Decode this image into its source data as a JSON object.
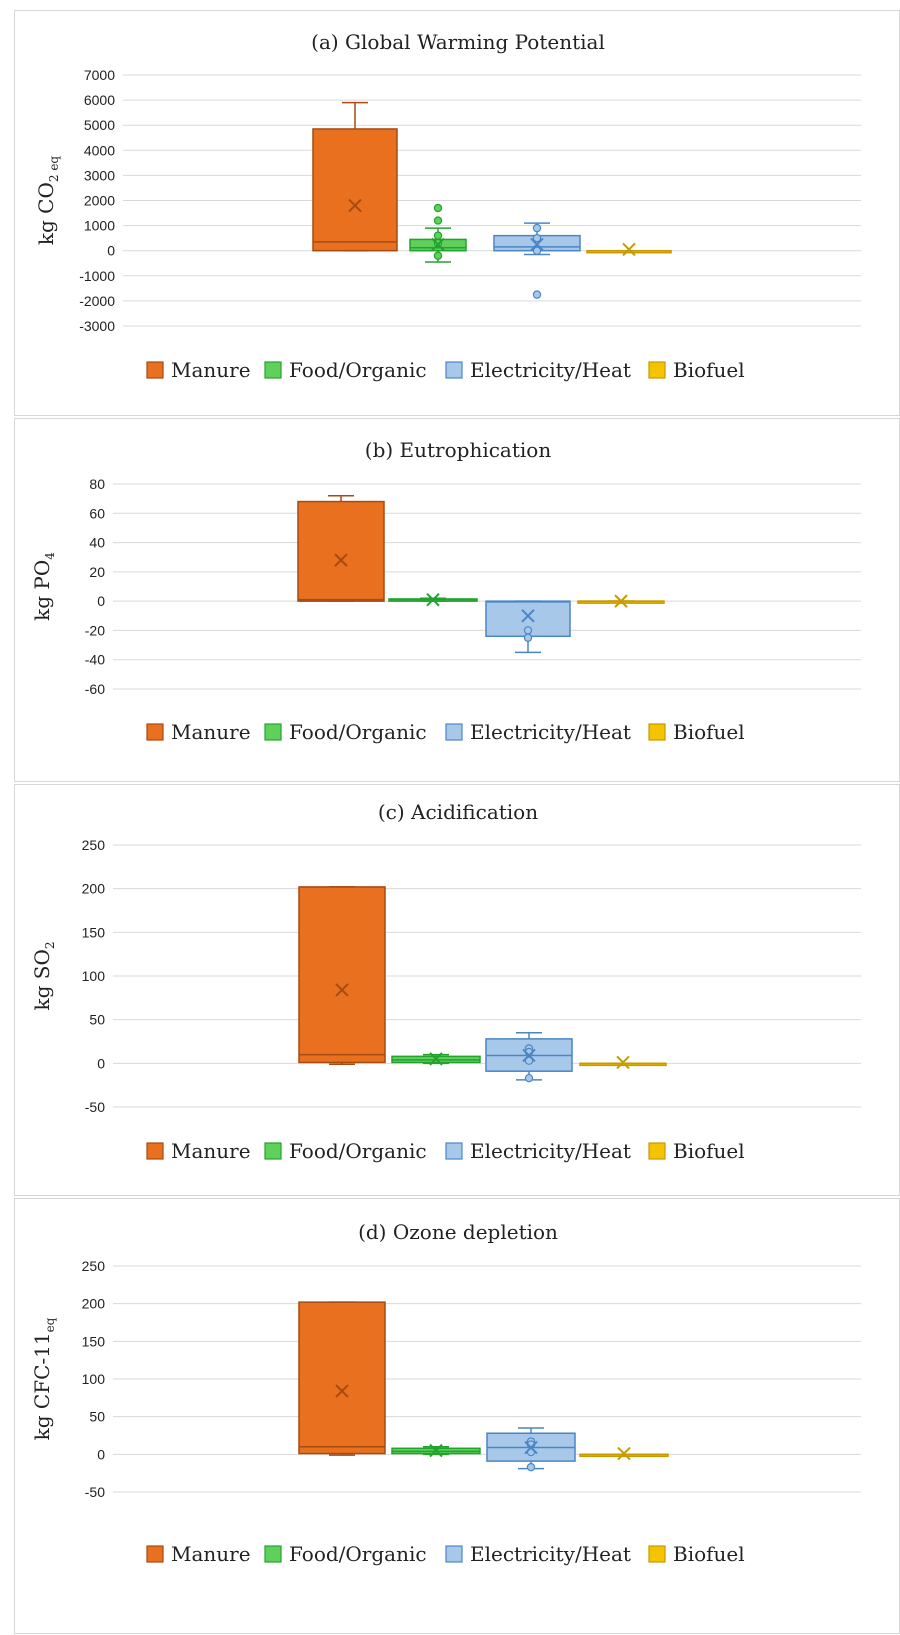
{
  "series_colors": {
    "Manure": {
      "fill": "#e8701f",
      "stroke": "#a64b12"
    },
    "Food/Organic": {
      "fill": "#5fd15a",
      "stroke": "#22a32e"
    },
    "Electricity/Heat": {
      "fill": "#a8c8ea",
      "stroke": "#4a86c6"
    },
    "Biofuel": {
      "fill": "#f5c400",
      "stroke": "#c79a00"
    }
  },
  "chart_data": [
    {
      "type": "box",
      "title": "(a) Global Warming Potential",
      "ylabel_main": "kg CO",
      "ylabel_sub": "2 eq",
      "ylim": [
        -3000,
        7000
      ],
      "yticks": [
        7000,
        6000,
        5000,
        4000,
        3000,
        2000,
        1000,
        0,
        -1000,
        -2000,
        -3000
      ],
      "legend": [
        "Manure",
        "Food/Organic",
        "Electricity/Heat",
        "Biofuel"
      ],
      "series": [
        {
          "name": "Manure",
          "q1": 0,
          "median": 350,
          "q3": 4850,
          "whisker_low": 0,
          "whisker_high": 5900,
          "mean": 1800,
          "outliers": []
        },
        {
          "name": "Food/Organic",
          "q1": 0,
          "median": 120,
          "q3": 450,
          "whisker_low": -450,
          "whisker_high": 900,
          "mean": 250,
          "outliers": [
            1700,
            1200,
            600,
            300,
            -200
          ]
        },
        {
          "name": "Electricity/Heat",
          "q1": 0,
          "median": 150,
          "q3": 600,
          "whisker_low": -150,
          "whisker_high": 1100,
          "mean": 250,
          "outliers": [
            900,
            500,
            0,
            -1750
          ]
        },
        {
          "name": "Biofuel",
          "q1": 0,
          "median": 0,
          "q3": 0,
          "whisker_low": 0,
          "whisker_high": 0,
          "mean": 50,
          "outliers": []
        }
      ]
    },
    {
      "type": "box",
      "title": "(b) Eutrophication",
      "ylabel_main": "kg PO",
      "ylabel_sub": "4",
      "ylim": [
        -60,
        80
      ],
      "yticks": [
        80,
        60,
        40,
        20,
        0,
        -20,
        -40,
        -60
      ],
      "legend": [
        "Manure",
        "Food/Organic",
        "Electricity/Heat",
        "Biofuel"
      ],
      "series": [
        {
          "name": "Manure",
          "q1": 0,
          "median": 1,
          "q3": 68,
          "whisker_low": 0,
          "whisker_high": 72,
          "mean": 28,
          "outliers": []
        },
        {
          "name": "Food/Organic",
          "q1": 0,
          "median": 1,
          "q3": 1.5,
          "whisker_low": 0,
          "whisker_high": 2,
          "mean": 1,
          "outliers": []
        },
        {
          "name": "Electricity/Heat",
          "q1": -24,
          "median": -0.5,
          "q3": 0,
          "whisker_low": -35,
          "whisker_high": 0,
          "mean": -10,
          "outliers": [
            -20,
            -25
          ]
        },
        {
          "name": "Biofuel",
          "q1": 0,
          "median": 0,
          "q3": 0,
          "whisker_low": 0,
          "whisker_high": 0,
          "mean": 0,
          "outliers": []
        }
      ]
    },
    {
      "type": "box",
      "title": "(c) Acidification",
      "ylabel_main": "kg SO",
      "ylabel_sub": "2",
      "ylim": [
        -50,
        250
      ],
      "yticks": [
        250,
        200,
        150,
        100,
        50,
        0,
        -50
      ],
      "legend": [
        "Manure",
        "Food/Organic",
        "Electricity/Heat",
        "Biofuel"
      ],
      "series": [
        {
          "name": "Manure",
          "q1": 1,
          "median": 10,
          "q3": 202,
          "whisker_low": -1,
          "whisker_high": 202,
          "mean": 84,
          "outliers": []
        },
        {
          "name": "Food/Organic",
          "q1": 1,
          "median": 4,
          "q3": 8,
          "whisker_low": 0,
          "whisker_high": 10,
          "mean": 5,
          "outliers": []
        },
        {
          "name": "Electricity/Heat",
          "q1": -9,
          "median": 9,
          "q3": 28,
          "whisker_low": -19,
          "whisker_high": 35,
          "mean": 9,
          "outliers": [
            17,
            13,
            3,
            -17
          ]
        },
        {
          "name": "Biofuel",
          "q1": 0,
          "median": 0,
          "q3": 0,
          "whisker_low": 0,
          "whisker_high": 0,
          "mean": 1,
          "outliers": []
        }
      ]
    },
    {
      "type": "box",
      "title": "(d) Ozone depletion",
      "ylabel_main": "kg CFC-11",
      "ylabel_sub": "eq",
      "ylim": [
        -50,
        250
      ],
      "yticks": [
        250,
        200,
        150,
        100,
        50,
        0,
        -50
      ],
      "legend": [
        "Manure",
        "Food/Organic",
        "Electricity/Heat",
        "Biofuel"
      ],
      "series": [
        {
          "name": "Manure",
          "q1": 1,
          "median": 10,
          "q3": 202,
          "whisker_low": -1,
          "whisker_high": 202,
          "mean": 84,
          "outliers": []
        },
        {
          "name": "Food/Organic",
          "q1": 1,
          "median": 4,
          "q3": 8,
          "whisker_low": 0,
          "whisker_high": 10,
          "mean": 5,
          "outliers": []
        },
        {
          "name": "Electricity/Heat",
          "q1": -9,
          "median": 9,
          "q3": 28,
          "whisker_low": -19,
          "whisker_high": 35,
          "mean": 9,
          "outliers": [
            17,
            13,
            3,
            -17
          ]
        },
        {
          "name": "Biofuel",
          "q1": 0,
          "median": 0,
          "q3": 0,
          "whisker_low": 0,
          "whisker_high": 0,
          "mean": 1,
          "outliers": []
        }
      ]
    }
  ]
}
